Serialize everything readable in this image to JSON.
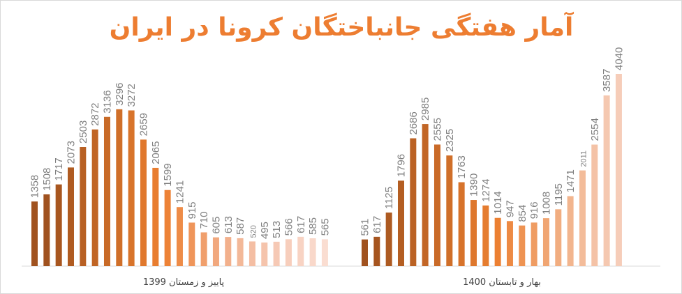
{
  "chart_data": {
    "type": "bar",
    "title": "آمار هفتگی جانباختگان کرونا در ایران",
    "groups": [
      {
        "name": "پاییز و زمستان 1399",
        "values": [
          1358,
          1508,
          1717,
          2073,
          2503,
          2872,
          3136,
          3296,
          3272,
          2659,
          2065,
          1599,
          1241,
          915,
          710,
          605,
          613,
          587,
          520,
          495,
          513,
          566,
          617,
          585,
          565
        ],
        "colors": [
          "#A0521F",
          "#A0521F",
          "#A8561F",
          "#B05B21",
          "#B86023",
          "#C06525",
          "#C86A27",
          "#D06F29",
          "#D8742B",
          "#E0782D",
          "#E87D30",
          "#ED8236",
          "#EE8C48",
          "#EF955A",
          "#F09F6C",
          "#F1A87E",
          "#F2B08C",
          "#F3B898",
          "#F4BEA3",
          "#F5C4AC",
          "#F6C9B5",
          "#F7CEBC",
          "#F8D3C3",
          "#F9D8CA",
          "#FADDD1"
        ]
      },
      {
        "name": "بهار و تابستان 1400",
        "values": [
          561,
          617,
          1125,
          1796,
          2686,
          2985,
          2555,
          2325,
          1763,
          1390,
          1274,
          1014,
          947,
          854,
          916,
          1008,
          1195,
          1471,
          2011,
          2554,
          3587,
          4040
        ],
        "colors": [
          "#A0521F",
          "#A6551F",
          "#AD5A21",
          "#B45E22",
          "#BB6224",
          "#C26626",
          "#C96A28",
          "#D06F29",
          "#D7732B",
          "#DE772D",
          "#E57C2F",
          "#EC8032",
          "#ED8A44",
          "#EE9352",
          "#EF9C62",
          "#F0A572",
          "#F1AD80",
          "#F2B58E",
          "#F3BC9A",
          "#F4C2A6",
          "#F5C8B0",
          "#F6CDB9"
        ]
      }
    ],
    "label_font_small": [
      18
    ]
  }
}
